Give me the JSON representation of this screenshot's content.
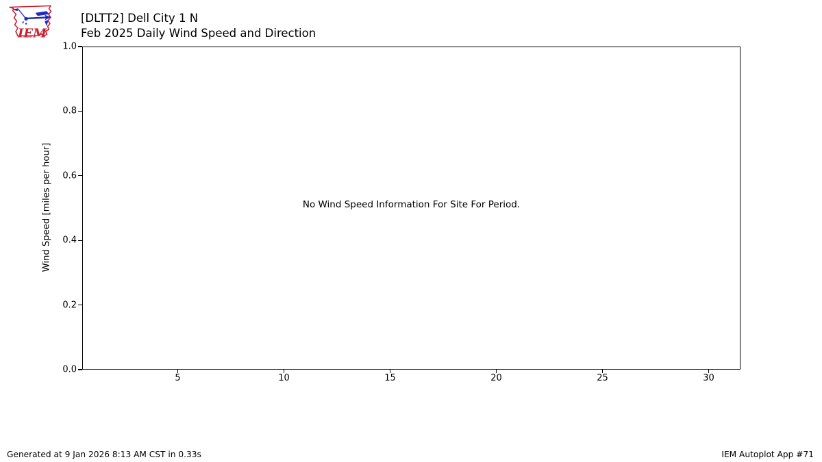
{
  "header": {
    "title_line1": "[DLTT2] Dell City 1 N",
    "title_line2": "Feb 2025 Daily Wind Speed and Direction",
    "logo_text": "IEM"
  },
  "chart_data": {
    "type": "line",
    "title": "[DLTT2] Dell City 1 N",
    "subtitle": "Feb 2025 Daily Wind Speed and Direction",
    "xlabel": "",
    "ylabel": "Wind Speed [miles per hour]",
    "xlim": [
      0.5,
      31.5
    ],
    "ylim": [
      0.0,
      1.0
    ],
    "x_ticks": [
      5,
      10,
      15,
      20,
      25,
      30
    ],
    "y_ticks": [
      "0.0",
      "0.2",
      "0.4",
      "0.6",
      "0.8",
      "1.0"
    ],
    "series": [],
    "grid": false,
    "legend": null,
    "no_data_message": "No Wind Speed Information For Site For Period."
  },
  "footer": {
    "generated": "Generated at 9 Jan 2026 8:13 AM CST in 0.33s",
    "app": "IEM Autoplot App #71"
  },
  "colors": {
    "background": "#ffffff",
    "axis": "#000000",
    "text": "#000000",
    "logo_red": "#cc2233",
    "logo_blue": "#1f2bbf"
  }
}
